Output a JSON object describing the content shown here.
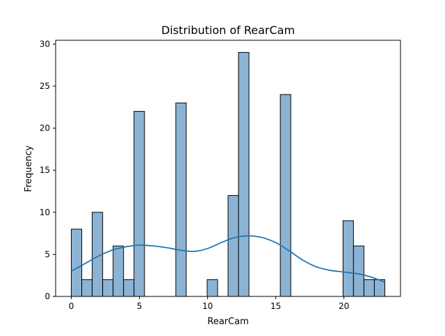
{
  "chart_data": {
    "type": "bar",
    "title": "Distribution of RearCam",
    "xlabel": "RearCam",
    "ylabel": "Frequency",
    "xlim": [
      -1.15,
      24.15
    ],
    "ylim": [
      0,
      30.45
    ],
    "bin_width": 0.7667,
    "bins": [
      {
        "start": 0.0,
        "end": 0.767,
        "count": 8
      },
      {
        "start": 0.767,
        "end": 1.533,
        "count": 2
      },
      {
        "start": 1.533,
        "end": 2.3,
        "count": 10
      },
      {
        "start": 2.3,
        "end": 3.067,
        "count": 2
      },
      {
        "start": 3.067,
        "end": 3.833,
        "count": 6
      },
      {
        "start": 3.833,
        "end": 4.6,
        "count": 2
      },
      {
        "start": 4.6,
        "end": 5.367,
        "count": 22
      },
      {
        "start": 7.667,
        "end": 8.433,
        "count": 23
      },
      {
        "start": 9.967,
        "end": 10.733,
        "count": 2
      },
      {
        "start": 11.5,
        "end": 12.267,
        "count": 12
      },
      {
        "start": 12.267,
        "end": 13.033,
        "count": 29
      },
      {
        "start": 15.333,
        "end": 16.1,
        "count": 24
      },
      {
        "start": 19.933,
        "end": 20.7,
        "count": 9
      },
      {
        "start": 20.7,
        "end": 21.467,
        "count": 6
      },
      {
        "start": 21.467,
        "end": 22.233,
        "count": 2
      },
      {
        "start": 22.233,
        "end": 23.0,
        "count": 2
      }
    ],
    "kde": {
      "x": [
        0,
        1,
        2,
        3,
        4,
        5,
        6,
        7,
        8,
        9,
        10,
        11,
        12,
        13,
        14,
        15,
        16,
        17,
        18,
        19,
        20,
        21,
        22,
        23
      ],
      "y": [
        3.0,
        3.9,
        4.8,
        5.5,
        5.9,
        6.1,
        6.0,
        5.8,
        5.5,
        5.35,
        5.7,
        6.4,
        7.0,
        7.2,
        7.0,
        6.4,
        5.4,
        4.3,
        3.5,
        3.1,
        2.9,
        2.7,
        2.3,
        1.7
      ]
    },
    "xticks": [
      0,
      5,
      10,
      15,
      20
    ],
    "yticks": [
      0,
      5,
      10,
      15,
      20,
      25,
      30
    ],
    "grid": false,
    "colors": {
      "bar_fill": "#8db3d4",
      "bar_edge": "#000000",
      "kde_line": "#1f77b4",
      "axes": "#000000"
    }
  }
}
